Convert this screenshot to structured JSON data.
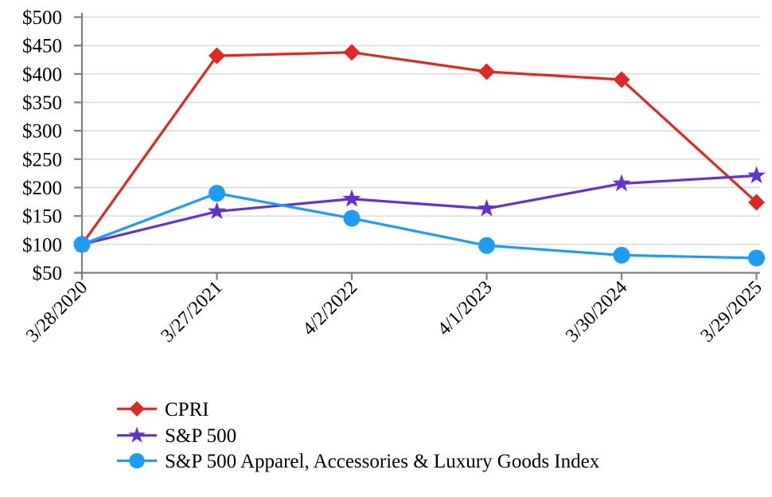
{
  "page": {
    "background": "#ffffff",
    "description": "Cumulative total return comparison line chart"
  },
  "chart_data": {
    "type": "line",
    "title": "",
    "categories": [
      "3/28/2020",
      "3/27/2021",
      "4/2/2022",
      "4/1/2023",
      "3/30/2024",
      "3/29/2025"
    ],
    "series": [
      {
        "name": "CPRI",
        "color": "#E02722",
        "marker": "diamond",
        "values": [
          100,
          432,
          438,
          404,
          390,
          174
        ]
      },
      {
        "name": "S&P 500",
        "color": "#6230D3",
        "marker": "star",
        "values": [
          100,
          158,
          180,
          163,
          207,
          221
        ]
      },
      {
        "name": "S&P 500 Apparel, Accessories & Luxury Goods Index",
        "color": "#1C9DF3",
        "marker": "circle",
        "values": [
          100,
          190,
          146,
          98,
          81,
          76
        ]
      }
    ],
    "y_axis": {
      "min": 50,
      "max": 500,
      "step": 50,
      "tick_prefix": "$",
      "labels": [
        "$500",
        "$450",
        "$400",
        "$350",
        "$300",
        "$250",
        "$200",
        "$150",
        "$100",
        "$50"
      ]
    },
    "x_axis": {
      "labels_rotation_deg": -45
    },
    "legend_position": "bottom-left",
    "grid": true,
    "colors": {
      "gridline": "#D9D9D9",
      "axis": "#808080",
      "text": "#000000"
    }
  }
}
